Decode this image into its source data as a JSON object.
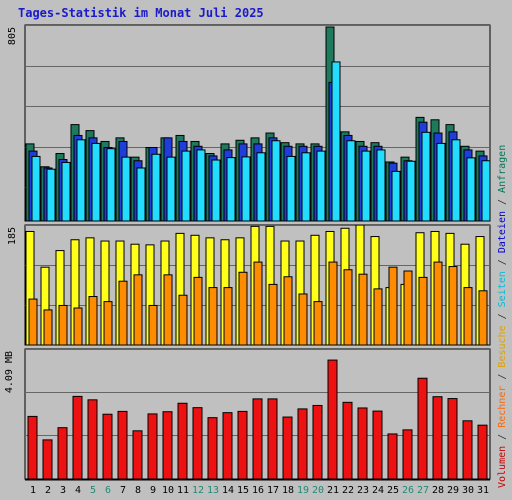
{
  "header": {
    "title": "Tages-Statistik im Monat Juli 2025"
  },
  "legend": [
    {
      "label": "Volumen",
      "color": "#cc0000"
    },
    {
      "label": " / ",
      "color": "#333333"
    },
    {
      "label": "Rechner",
      "color": "#ff6600"
    },
    {
      "label": " / ",
      "color": "#333333"
    },
    {
      "label": "Besuche",
      "color": "#e0a000"
    },
    {
      "label": " / ",
      "color": "#333333"
    },
    {
      "label": "Seiten",
      "color": "#00bbdd"
    },
    {
      "label": " / ",
      "color": "#333333"
    },
    {
      "label": "Dateien",
      "color": "#0000cc"
    },
    {
      "label": " / ",
      "color": "#333333"
    },
    {
      "label": "Anfragen",
      "color": "#007755"
    }
  ],
  "chart_data": [
    {
      "type": "bar",
      "title": "Anfragen / Dateien / Seiten",
      "ylim": [
        0,
        805
      ],
      "y_tick_labels": [
        "805"
      ],
      "categories": [
        "1",
        "2",
        "3",
        "4",
        "5",
        "6",
        "7",
        "8",
        "9",
        "10",
        "11",
        "12",
        "13",
        "14",
        "15",
        "16",
        "17",
        "18",
        "19",
        "20",
        "21",
        "22",
        "23",
        "24",
        "25",
        "26",
        "27",
        "28",
        "29",
        "30",
        "31"
      ],
      "series": [
        {
          "name": "Anfragen",
          "color": "#1d7a5c",
          "values": [
            320,
            225,
            280,
            400,
            375,
            330,
            345,
            265,
            305,
            345,
            355,
            330,
            280,
            320,
            335,
            345,
            365,
            325,
            320,
            320,
            805,
            370,
            330,
            325,
            245,
            265,
            430,
            420,
            400,
            310,
            290
          ]
        },
        {
          "name": "Dateien",
          "color": "#1f3ddb",
          "values": [
            290,
            220,
            255,
            355,
            345,
            305,
            330,
            250,
            305,
            345,
            330,
            310,
            270,
            295,
            320,
            320,
            345,
            310,
            310,
            310,
            575,
            355,
            310,
            310,
            240,
            250,
            410,
            365,
            370,
            295,
            270
          ]
        },
        {
          "name": "Seiten",
          "color": "#22ddff",
          "values": [
            268,
            215,
            243,
            337,
            322,
            300,
            265,
            220,
            277,
            265,
            290,
            295,
            253,
            263,
            266,
            283,
            333,
            268,
            283,
            290,
            660,
            333,
            290,
            295,
            206,
            248,
            368,
            322,
            337,
            262,
            250
          ]
        }
      ]
    },
    {
      "type": "bar",
      "title": "Besuche / Rechner",
      "ylim": [
        0,
        185
      ],
      "y_tick_labels": [
        "185"
      ],
      "categories": [
        "1",
        "2",
        "3",
        "4",
        "5",
        "6",
        "7",
        "8",
        "9",
        "10",
        "11",
        "12",
        "13",
        "14",
        "15",
        "16",
        "17",
        "18",
        "19",
        "20",
        "21",
        "22",
        "23",
        "24",
        "25",
        "26",
        "27",
        "28",
        "29",
        "30",
        "31"
      ],
      "series": [
        {
          "name": "Besuche",
          "color": "#ffff1a",
          "values": [
            178,
            122,
            148,
            165,
            168,
            163,
            163,
            158,
            157,
            163,
            175,
            172,
            168,
            165,
            168,
            186,
            186,
            163,
            163,
            172,
            178,
            183,
            188,
            170,
            90,
            95,
            176,
            178,
            175,
            158,
            170
          ]
        },
        {
          "name": "Rechner",
          "color": "#ff8c00",
          "values": [
            72,
            55,
            62,
            58,
            76,
            68,
            100,
            110,
            62,
            110,
            78,
            106,
            90,
            90,
            114,
            130,
            95,
            107,
            80,
            68,
            130,
            118,
            111,
            88,
            122,
            116,
            106,
            130,
            123,
            90,
            85
          ]
        }
      ]
    },
    {
      "type": "bar",
      "title": "Volumen",
      "ylim": [
        0,
        4.09
      ],
      "y_tick_labels": [
        "4.09 MB"
      ],
      "categories": [
        "1",
        "2",
        "3",
        "4",
        "5",
        "6",
        "7",
        "8",
        "9",
        "10",
        "11",
        "12",
        "13",
        "14",
        "15",
        "16",
        "17",
        "18",
        "19",
        "20",
        "21",
        "22",
        "23",
        "24",
        "25",
        "26",
        "27",
        "28",
        "29",
        "30",
        "31"
      ],
      "series": [
        {
          "name": "Volumen",
          "color": "#ee1111",
          "values": [
            2.0,
            1.25,
            1.64,
            2.64,
            2.53,
            2.07,
            2.16,
            1.54,
            2.08,
            2.15,
            2.42,
            2.28,
            1.96,
            2.12,
            2.16,
            2.56,
            2.56,
            1.98,
            2.24,
            2.35,
            3.8,
            2.45,
            2.27,
            2.17,
            1.44,
            1.57,
            3.22,
            2.63,
            2.57,
            1.86,
            1.72
          ]
        }
      ]
    }
  ],
  "x_axis": {
    "labels": [
      "1",
      "2",
      "3",
      "4",
      "5",
      "6",
      "7",
      "8",
      "9",
      "10",
      "11",
      "12",
      "13",
      "14",
      "15",
      "16",
      "17",
      "18",
      "19",
      "20",
      "21",
      "22",
      "23",
      "24",
      "25",
      "26",
      "27",
      "28",
      "29",
      "30",
      "31"
    ],
    "weekend_days": [
      "5",
      "6",
      "12",
      "13",
      "19",
      "20",
      "26",
      "27"
    ],
    "weekday_color": "#000000",
    "weekend_color": "#1e8a73"
  },
  "colors": {
    "background": "#c0c0c0",
    "title": "#1a1acc",
    "bar_outline": "#000000"
  }
}
